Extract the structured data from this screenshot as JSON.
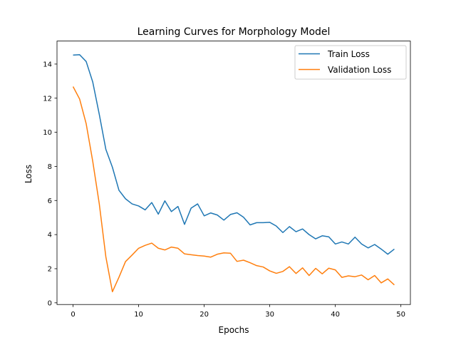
{
  "chart_data": {
    "type": "line",
    "title": "Learning Curves for Morphology Model",
    "xlabel": "Epochs",
    "ylabel": "Loss",
    "xlim": [
      -2.45,
      51.45
    ],
    "ylim": [
      -0.1,
      15.35
    ],
    "xticks": [
      0,
      10,
      20,
      30,
      40,
      50
    ],
    "xtick_labels": [
      "0",
      "10",
      "20",
      "30",
      "40",
      "50"
    ],
    "yticks": [
      0,
      2,
      4,
      6,
      8,
      10,
      12,
      14
    ],
    "ytick_labels": [
      "0",
      "2",
      "4",
      "6",
      "8",
      "10",
      "12",
      "14"
    ],
    "grid": false,
    "legend_position": "top-right",
    "x": [
      0,
      1,
      2,
      3,
      4,
      5,
      6,
      7,
      8,
      9,
      10,
      11,
      12,
      13,
      14,
      15,
      16,
      17,
      18,
      19,
      20,
      21,
      22,
      23,
      24,
      25,
      26,
      27,
      28,
      29,
      30,
      31,
      32,
      33,
      34,
      35,
      36,
      37,
      38,
      39,
      40,
      41,
      42,
      43,
      44,
      45,
      46,
      47,
      48,
      49
    ],
    "series": [
      {
        "name": "Train Loss",
        "color": "#1f77b4",
        "values": [
          14.53,
          14.55,
          14.15,
          12.95,
          11.05,
          9.0,
          7.95,
          6.6,
          6.1,
          5.8,
          5.68,
          5.45,
          5.88,
          5.2,
          5.98,
          5.35,
          5.65,
          4.6,
          5.55,
          5.8,
          5.1,
          5.27,
          5.15,
          4.85,
          5.18,
          5.28,
          5.02,
          4.57,
          4.7,
          4.7,
          4.72,
          4.5,
          4.12,
          4.47,
          4.17,
          4.33,
          4.0,
          3.75,
          3.93,
          3.87,
          3.45,
          3.57,
          3.45,
          3.85,
          3.45,
          3.22,
          3.42,
          3.15,
          2.85,
          3.15
        ]
      },
      {
        "name": "Validation Loss",
        "color": "#ff7f0e",
        "values": [
          12.68,
          11.95,
          10.5,
          8.3,
          5.8,
          2.7,
          0.65,
          1.5,
          2.42,
          2.8,
          3.2,
          3.37,
          3.5,
          3.2,
          3.1,
          3.27,
          3.2,
          2.87,
          2.82,
          2.77,
          2.74,
          2.68,
          2.85,
          2.93,
          2.91,
          2.43,
          2.5,
          2.35,
          2.18,
          2.1,
          1.87,
          1.73,
          1.84,
          2.12,
          1.72,
          2.05,
          1.6,
          2.02,
          1.7,
          2.03,
          1.93,
          1.49,
          1.58,
          1.53,
          1.63,
          1.35,
          1.6,
          1.17,
          1.4,
          1.05
        ]
      }
    ]
  }
}
